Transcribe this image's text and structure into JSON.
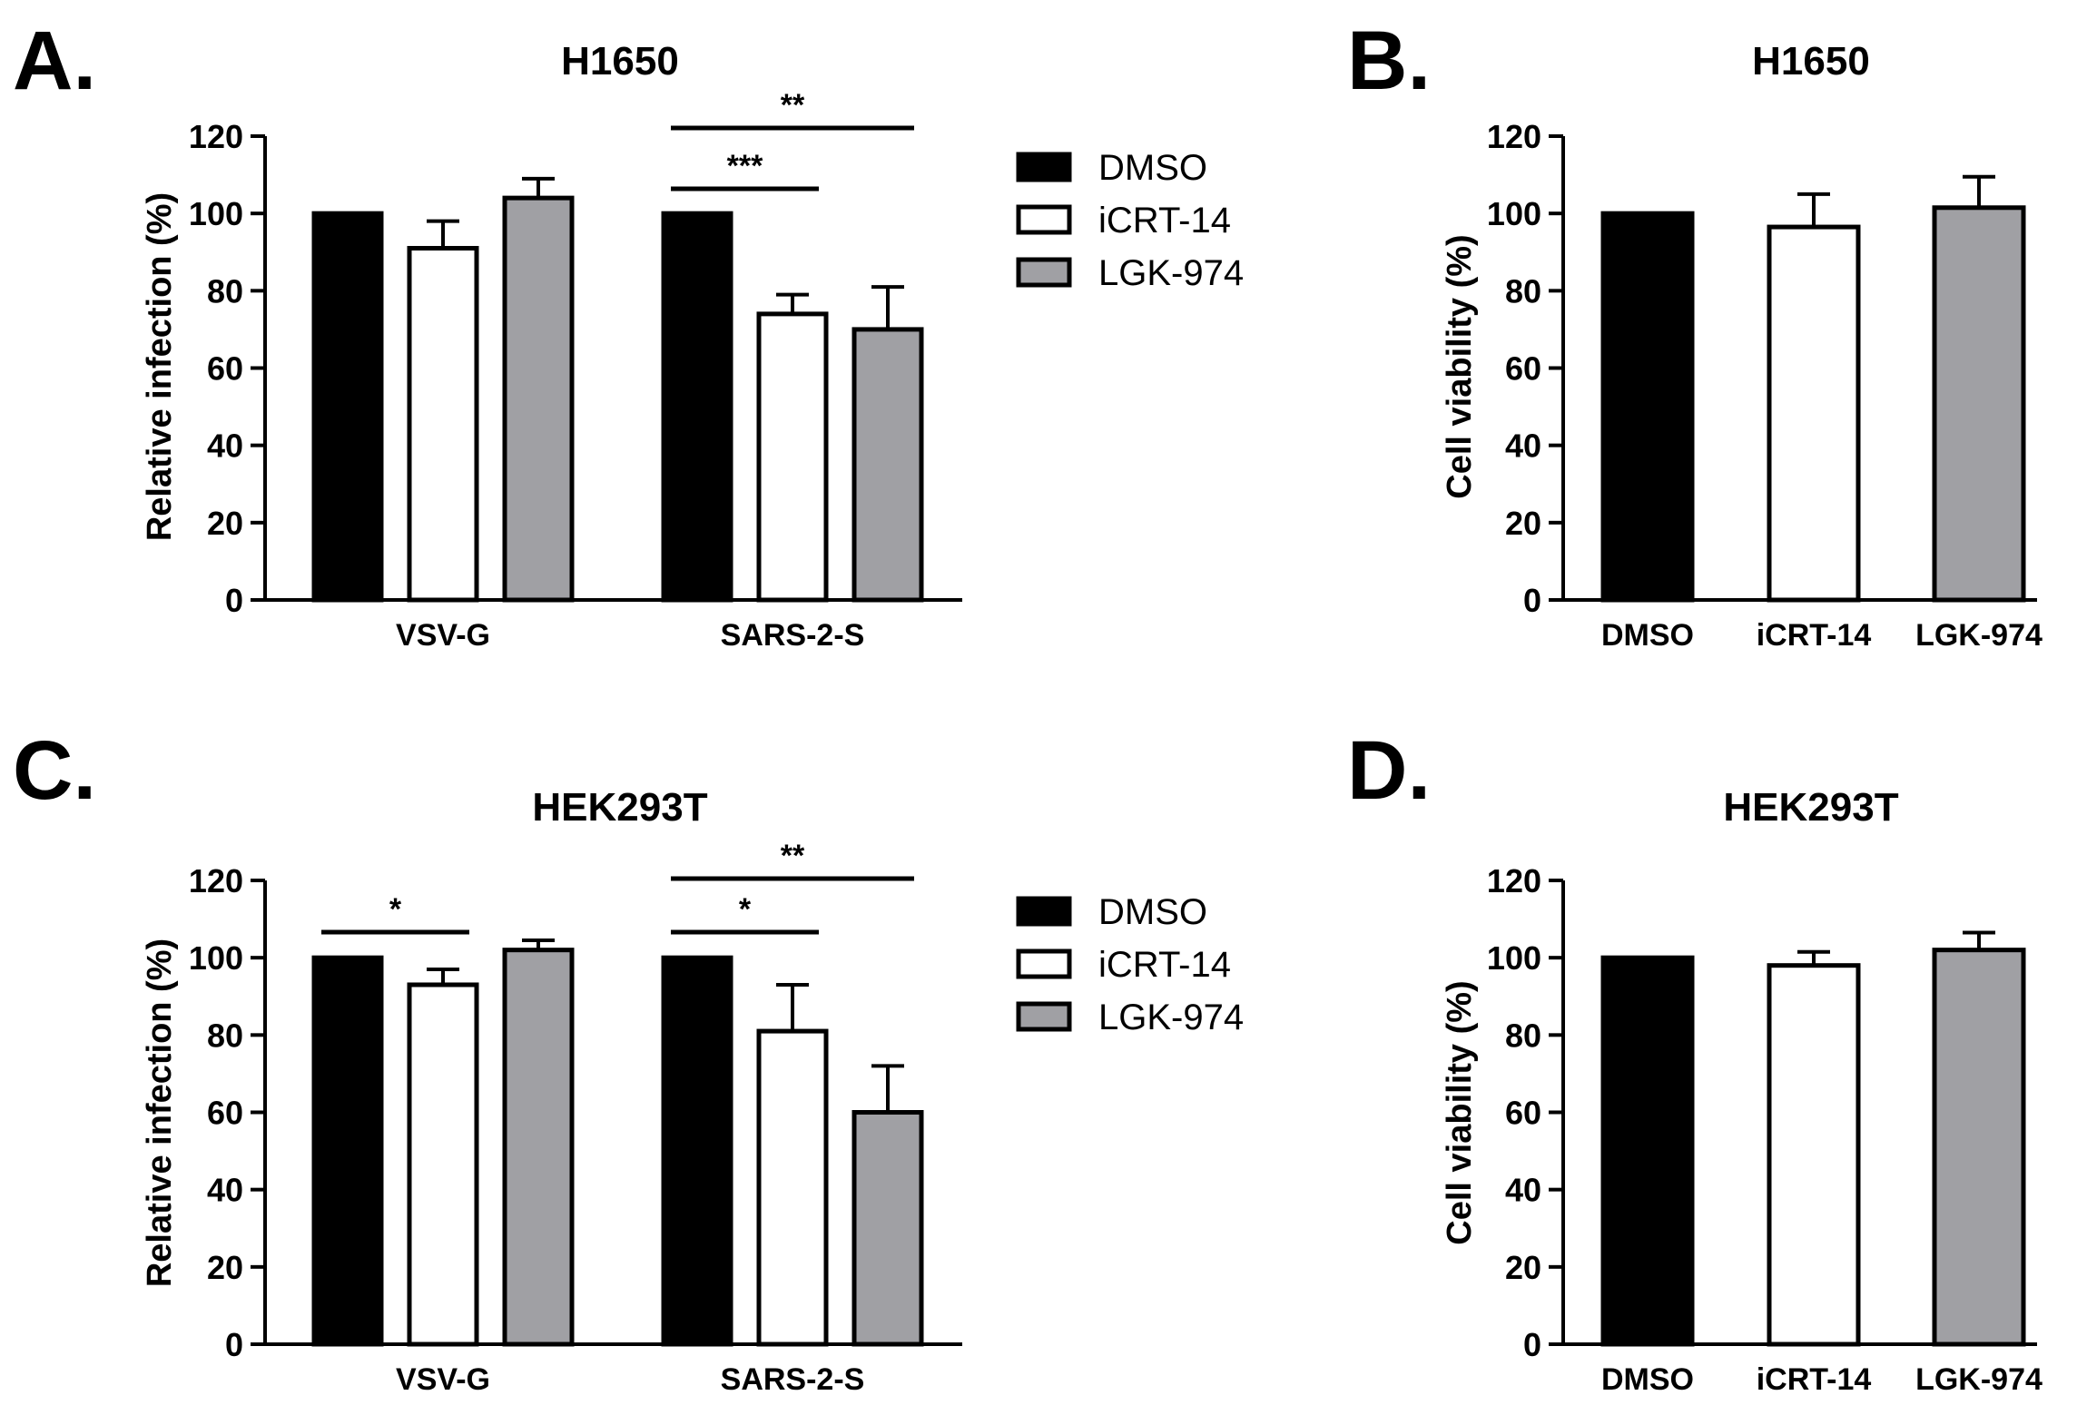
{
  "colors": {
    "dmso": "#000000",
    "icrt": "#ffffff",
    "lgk": "#a0a0a4",
    "stroke": "#000000"
  },
  "chart_data": [
    {
      "panel": "A.",
      "type": "bar",
      "title": "H1650",
      "xlabel": "",
      "ylabel": "Relative infection (%)",
      "ylim": [
        0,
        120
      ],
      "yticks": [
        "0",
        "20",
        "40",
        "60",
        "80",
        "100",
        "120"
      ],
      "categories": [
        "VSV-G",
        "SARS-2-S"
      ],
      "series": [
        {
          "name": "DMSO",
          "values": [
            100,
            100
          ],
          "errors": [
            0,
            0
          ]
        },
        {
          "name": "iCRT-14",
          "values": [
            91,
            74
          ],
          "errors": [
            7,
            5
          ]
        },
        {
          "name": "LGK-974",
          "values": [
            104,
            70
          ],
          "errors": [
            5,
            11
          ]
        }
      ],
      "legend": [
        "DMSO",
        "iCRT-14",
        "LGK-974"
      ],
      "annotations": [
        {
          "label": "**",
          "group": 1,
          "from": 0,
          "to": 2,
          "level": 1
        },
        {
          "label": "***",
          "group": 1,
          "from": 0,
          "to": 1,
          "level": 0
        }
      ]
    },
    {
      "panel": "B.",
      "type": "bar",
      "title": "H1650",
      "xlabel": "",
      "ylabel": "Cell viability (%)",
      "ylim": [
        0,
        120
      ],
      "yticks": [
        "0",
        "20",
        "40",
        "60",
        "80",
        "100",
        "120"
      ],
      "categories": [
        "DMSO",
        "iCRT-14",
        "LGK-974"
      ],
      "values": [
        100,
        96.5,
        101.5
      ],
      "errors": [
        0,
        8.5,
        8
      ]
    },
    {
      "panel": "C.",
      "type": "bar",
      "title": "HEK293T",
      "xlabel": "",
      "ylabel": "Relative infection (%)",
      "ylim": [
        0,
        120
      ],
      "yticks": [
        "0",
        "20",
        "40",
        "60",
        "80",
        "100",
        "120"
      ],
      "categories": [
        "VSV-G",
        "SARS-2-S"
      ],
      "series": [
        {
          "name": "DMSO",
          "values": [
            100,
            100
          ],
          "errors": [
            0,
            0
          ]
        },
        {
          "name": "iCRT-14",
          "values": [
            93,
            81
          ],
          "errors": [
            4,
            12
          ]
        },
        {
          "name": "LGK-974",
          "values": [
            102,
            60
          ],
          "errors": [
            2.5,
            12
          ]
        }
      ],
      "legend": [
        "DMSO",
        "iCRT-14",
        "LGK-974"
      ],
      "annotations": [
        {
          "label": "*",
          "group": 0,
          "from": 0,
          "to": 1,
          "level": 0
        },
        {
          "label": "**",
          "group": 1,
          "from": 0,
          "to": 2,
          "level": 1
        },
        {
          "label": "*",
          "group": 1,
          "from": 0,
          "to": 1,
          "level": 0
        }
      ]
    },
    {
      "panel": "D.",
      "type": "bar",
      "title": "HEK293T",
      "xlabel": "",
      "ylabel": "Cell viability (%)",
      "ylim": [
        0,
        120
      ],
      "yticks": [
        "0",
        "20",
        "40",
        "60",
        "80",
        "100",
        "120"
      ],
      "categories": [
        "DMSO",
        "iCRT-14",
        "LGK-974"
      ],
      "values": [
        100,
        98,
        102
      ],
      "errors": [
        0,
        3.5,
        4.5
      ]
    }
  ]
}
